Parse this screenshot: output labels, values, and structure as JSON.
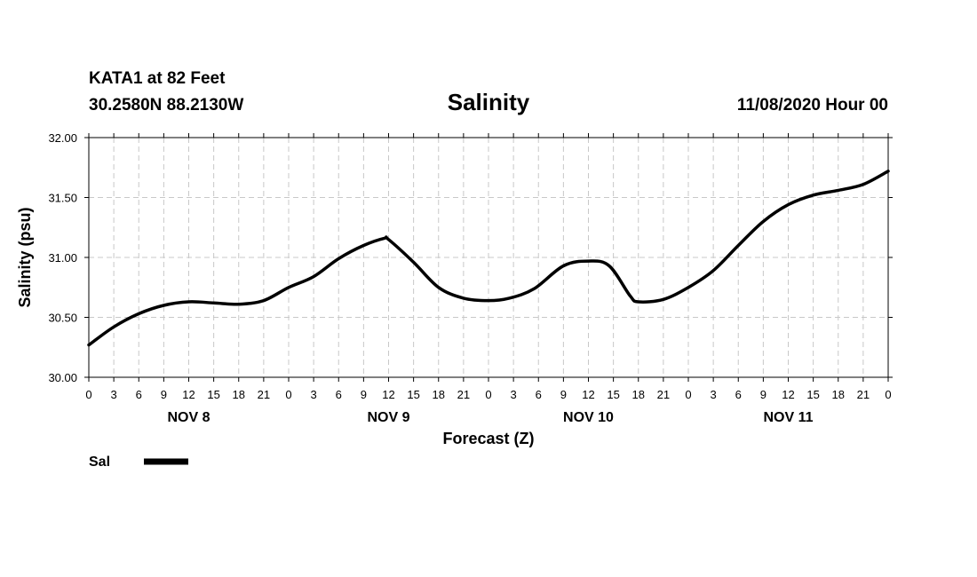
{
  "header": {
    "station": "KATA1 at 82 Feet",
    "coords": "30.2580N 88.2130W",
    "title": "Salinity",
    "run": "11/08/2020 Hour 00"
  },
  "chart_data": {
    "type": "line",
    "title": "Salinity",
    "xlabel": "Forecast (Z)",
    "ylabel": "Salinity (psu)",
    "ylim": [
      30.0,
      32.0
    ],
    "yticks": [
      "30.00",
      "30.50",
      "31.00",
      "31.50",
      "32.00"
    ],
    "xlim_hours": [
      0,
      96
    ],
    "xtick_labels": [
      "0",
      "3",
      "6",
      "9",
      "12",
      "15",
      "18",
      "21",
      "0",
      "3",
      "6",
      "9",
      "12",
      "15",
      "18",
      "21",
      "0",
      "3",
      "6",
      "9",
      "12",
      "15",
      "18",
      "21",
      "0",
      "3",
      "6",
      "9",
      "12",
      "15",
      "18",
      "21",
      "0"
    ],
    "day_labels": [
      "NOV 8",
      "NOV 9",
      "NOV 10",
      "NOV 11"
    ],
    "grid": true,
    "legend": "bottom-left",
    "series": [
      {
        "name": "Sal",
        "color": "#000000",
        "x": [
          0,
          3,
          6,
          9,
          12,
          15,
          18,
          21,
          24,
          27,
          30,
          33,
          35.5,
          36,
          39,
          42,
          45,
          48,
          50.5,
          53.5,
          57,
          60,
          62.5,
          65,
          66,
          69,
          72,
          75,
          78,
          81,
          84,
          87,
          90,
          93,
          96
        ],
        "values": [
          30.27,
          30.42,
          30.53,
          30.6,
          30.63,
          30.62,
          30.61,
          30.64,
          30.75,
          30.84,
          30.99,
          31.1,
          31.16,
          31.15,
          30.96,
          30.75,
          30.66,
          30.64,
          30.66,
          30.74,
          30.93,
          30.97,
          30.93,
          30.68,
          30.63,
          30.65,
          30.75,
          30.89,
          31.1,
          31.3,
          31.44,
          31.52,
          31.56,
          31.61,
          31.72
        ]
      }
    ]
  }
}
